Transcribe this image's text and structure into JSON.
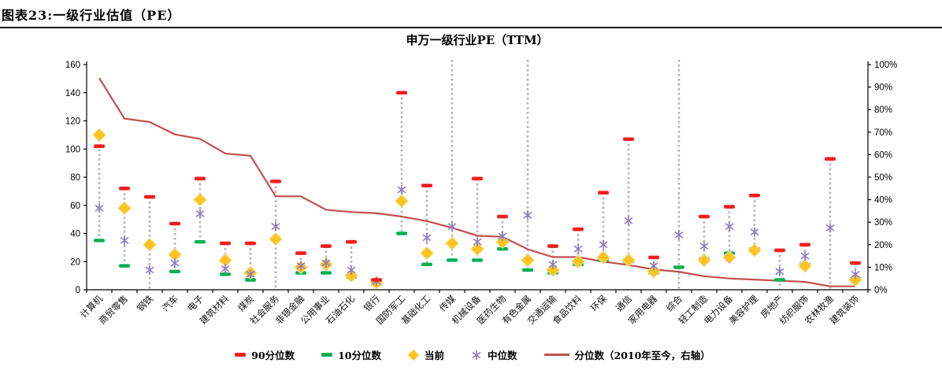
{
  "header": {
    "title": "图表23:一级行业估值（PE）"
  },
  "chart": {
    "title": "申万一级行业PE（TTM）"
  },
  "colors": {
    "p90": "#F51D1D",
    "p10": "#00B050",
    "current": "#FFC320",
    "median": "#8E7CC3",
    "percentile_line": "#C0504D",
    "connector": "#B3B3B3",
    "axis": "#000000"
  },
  "chart_data": {
    "type": "scatter",
    "title": "申万一级行业PE（TTM）",
    "left_axis": {
      "min": 0,
      "max": 160,
      "step": 20,
      "tick_labels": [
        "0",
        "20",
        "40",
        "60",
        "80",
        "100",
        "120",
        "140",
        "160"
      ]
    },
    "right_axis": {
      "min": 0,
      "max": 100,
      "step": 10,
      "tick_labels": [
        "0%",
        "10%",
        "20%",
        "30%",
        "40%",
        "50%",
        "60%",
        "70%",
        "80%",
        "90%",
        "100%"
      ]
    },
    "grid": false,
    "legend_position": "bottom",
    "categories": [
      "计算机",
      "商贸零售",
      "钢铁",
      "汽车",
      "电子",
      "建筑材料",
      "煤炭",
      "社会服务",
      "非银金融",
      "公用事业",
      "石油石化",
      "银行",
      "国防军工",
      "基础化工",
      "传媒",
      "机械设备",
      "医药生物",
      "有色金属",
      "交通运输",
      "食品饮料",
      "环保",
      "通信",
      "家用电器",
      "综合",
      "轻工制造",
      "电力设备",
      "美容护理",
      "房地产",
      "纺织服饰",
      "农林牧渔",
      "建筑装饰"
    ],
    "series": [
      {
        "name": "90分位数",
        "marker": "red-dash",
        "color": "#F51D1D",
        "values": [
          102,
          72,
          66,
          47,
          79,
          33,
          33,
          77,
          26,
          31,
          34,
          7,
          140,
          74,
          null,
          79,
          52,
          null,
          31,
          43,
          69,
          107,
          23,
          null,
          52,
          59,
          67,
          28,
          32,
          93,
          19
        ]
      },
      {
        "name": "10分位数",
        "marker": "green-dash",
        "color": "#00B050",
        "values": [
          35,
          17,
          null,
          13,
          34,
          11,
          7,
          null,
          12,
          12,
          9,
          4,
          40,
          18,
          21,
          21,
          29,
          14,
          12,
          18,
          21,
          20,
          12,
          16,
          22,
          26,
          29,
          7,
          18,
          null,
          8
        ]
      },
      {
        "name": "当前",
        "marker": "yellow-diamond",
        "color": "#FFC320",
        "values": [
          110,
          58,
          32,
          25,
          64,
          21,
          12,
          36,
          16,
          18,
          10,
          5,
          63,
          26,
          33,
          29,
          34,
          21,
          14,
          20,
          23,
          21,
          13,
          null,
          21,
          23,
          28,
          null,
          17,
          null,
          7
        ]
      },
      {
        "name": "中位数",
        "marker": "purple-asterisk",
        "color": "#8E7CC3",
        "values": [
          58,
          35,
          14,
          19,
          54,
          15,
          11,
          45,
          17,
          19,
          14,
          6,
          71,
          37,
          45,
          34,
          38,
          53,
          18,
          29,
          32,
          49,
          17,
          39,
          31,
          45,
          41,
          13,
          24,
          44,
          11
        ]
      },
      {
        "name": "分位数（2010年至今，右轴）",
        "marker": "line",
        "color": "#C0504D",
        "axis": "right",
        "values_percent": [
          94,
          76,
          74.5,
          69,
          67,
          60.5,
          59.5,
          41.5,
          41.5,
          35.5,
          34.5,
          34,
          32.5,
          30.5,
          27.5,
          24,
          23.5,
          18,
          14.5,
          14.5,
          12.5,
          11,
          9,
          8,
          6,
          5,
          4.5,
          4,
          3.5,
          1.5,
          1.5
        ]
      }
    ],
    "range_extends_to_zero": [
      "钢铁",
      "社会服务",
      "综合",
      "房地产",
      "农林牧渔"
    ],
    "p90_clipped_above_top": [
      "传媒",
      "有色金属",
      "综合"
    ]
  },
  "legend": {
    "items": [
      {
        "label": "90分位数"
      },
      {
        "label": "10分位数"
      },
      {
        "label": "当前"
      },
      {
        "label": "中位数"
      },
      {
        "label": "分位数（2010年至今，右轴）"
      }
    ]
  }
}
